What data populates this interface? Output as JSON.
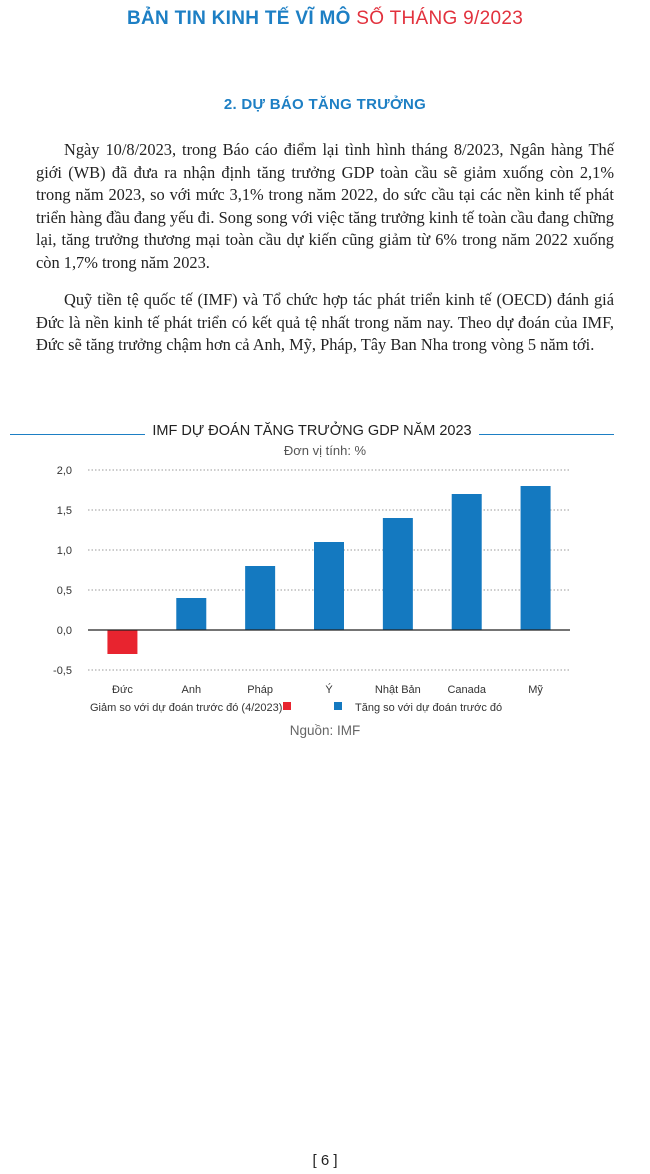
{
  "header": {
    "title_main": "BẢN TIN KINH TẾ VĨ MÔ",
    "title_issue": "SỐ THÁNG 9/2023"
  },
  "section": {
    "title": "2. DỰ BÁO TĂNG TRƯỞNG"
  },
  "paragraphs": [
    "Ngày 10/8/2023, trong Báo cáo điểm lại tình hình tháng 8/2023, Ngân hàng Thế giới (WB) đã đưa ra nhận định tăng trưởng GDP toàn cầu sẽ giảm xuống còn 2,1% trong năm 2023, so với mức 3,1% trong năm 2022, do sức cầu tại các nền kinh tế phát triển hàng đầu đang yếu đi. Song song với việc tăng trưởng kinh tế toàn cầu đang chững lại, tăng trưởng thương mại toàn cầu dự kiến cũng giảm từ 6% trong năm 2022 xuống còn 1,7% trong năm 2023.",
    "Quỹ tiền tệ quốc tế (IMF) và Tổ chức hợp tác phát triển kinh tế (OECD) đánh giá Đức là nền kinh tế phát triển có kết quả tệ nhất trong năm nay. Theo dự đoán của IMF, Đức sẽ tăng trưởng chậm hơn cả Anh, Mỹ, Pháp, Tây Ban Nha trong vòng 5 năm tới."
  ],
  "chart_data": {
    "type": "bar",
    "title": "IMF DỰ ĐOÁN TĂNG TRƯỞNG GDP NĂM 2023",
    "subtitle": "Đơn vị tính: %",
    "categories": [
      "Đức",
      "Anh",
      "Pháp",
      "Ý",
      "Nhật Bản",
      "Canada",
      "Mỹ"
    ],
    "values": [
      -0.3,
      0.4,
      0.8,
      1.1,
      1.4,
      1.7,
      1.8
    ],
    "ylim": [
      -0.5,
      2.0
    ],
    "yticks": [
      "2,0",
      "1,5",
      "1,0",
      "0,5",
      "0,0",
      "-0,5"
    ],
    "ytick_values": [
      2.0,
      1.5,
      1.0,
      0.5,
      0.0,
      -0.5
    ],
    "grid": "dotted-horizontal",
    "legend_position": "bottom",
    "legend": [
      {
        "label": "Giảm so với dự đoán trước đó (4/2023)",
        "color": "#e8242f"
      },
      {
        "label": "Tăng so với dự đoán trước đó",
        "color": "#1479c0"
      }
    ],
    "bar_colors": [
      "#e8242f",
      "#1479c0",
      "#1479c0",
      "#1479c0",
      "#1479c0",
      "#1479c0",
      "#1479c0"
    ],
    "source": "Nguồn: IMF"
  },
  "footer": {
    "page_number": "[ 6 ]"
  }
}
